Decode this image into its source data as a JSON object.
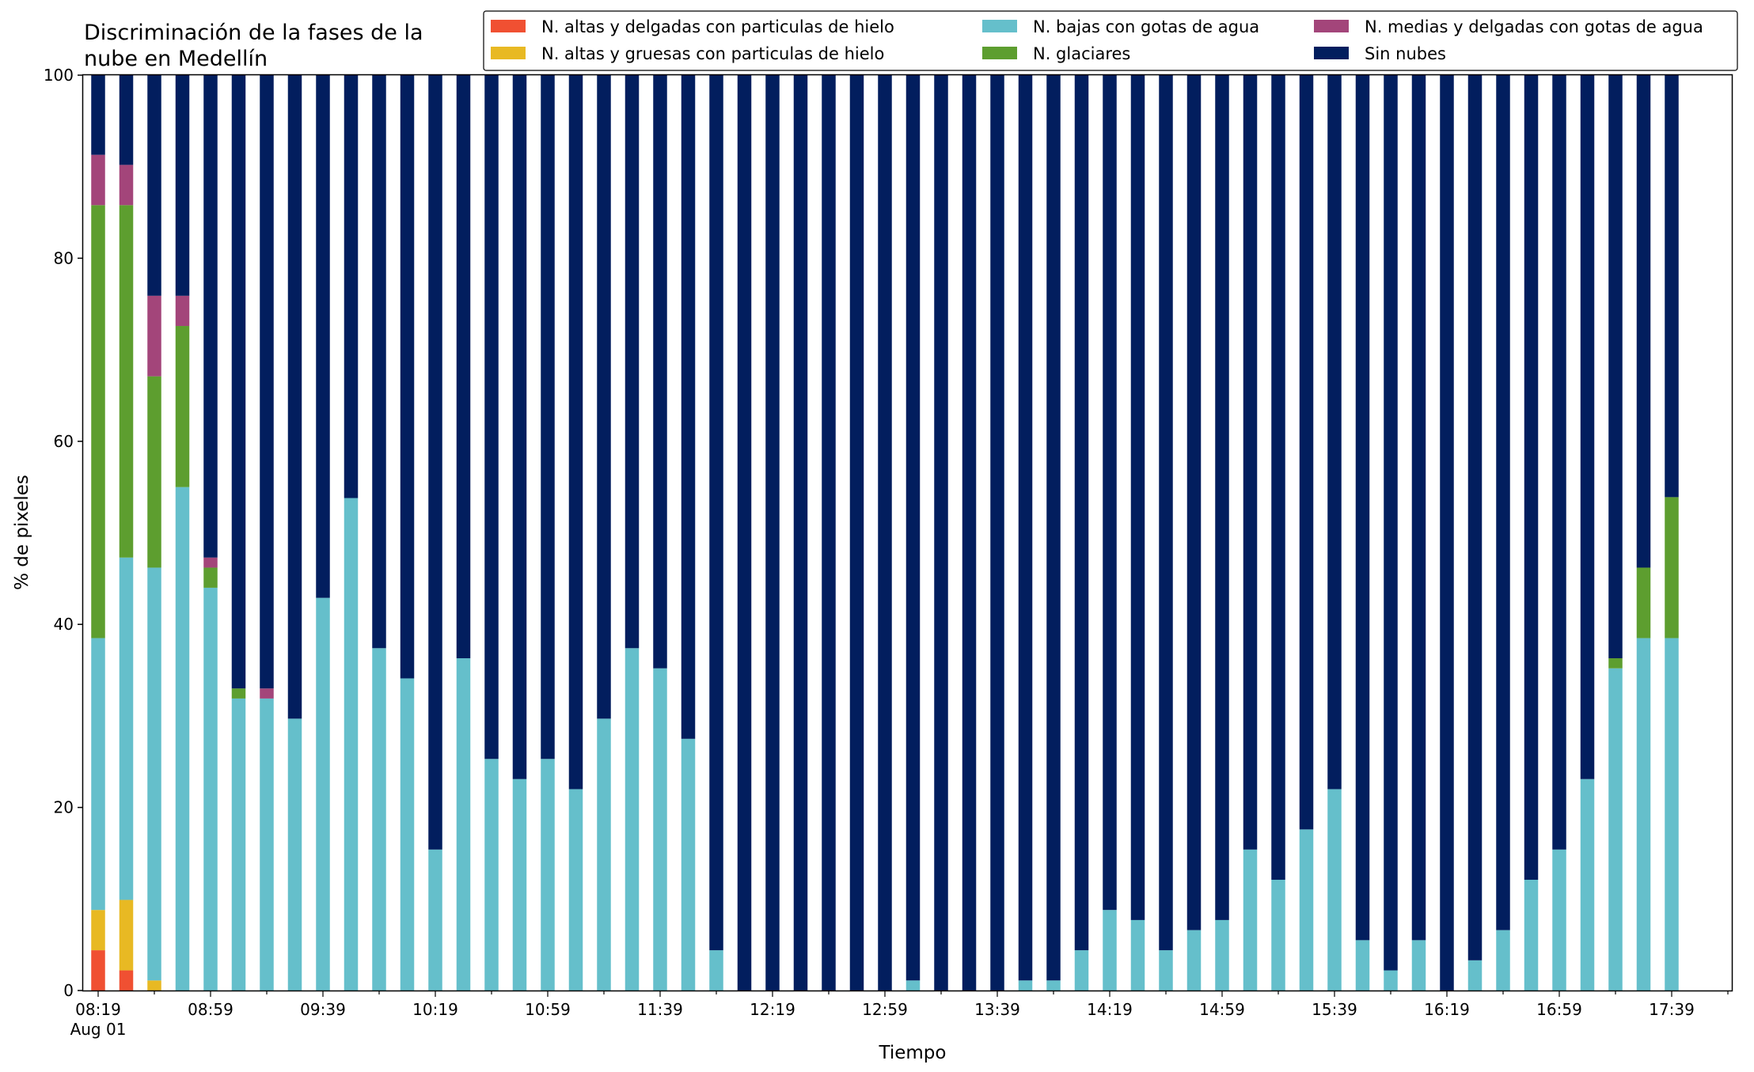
{
  "chart_data": {
    "type": "bar",
    "stacked": true,
    "title": "Discriminación de la fases de la\nnube en Medellín",
    "xlabel": "Tiempo",
    "ylabel": "% de pixeles",
    "ylim": [
      0,
      100
    ],
    "yticks": [
      0,
      20,
      40,
      60,
      80,
      100
    ],
    "grid": false,
    "legend_position": "top-right",
    "x_start": "08:19",
    "x_step_minutes": 10,
    "x_tick_labels": [
      "08:19",
      "08:59",
      "09:39",
      "10:19",
      "10:59",
      "11:39",
      "12:19",
      "12:59",
      "13:39",
      "14:19",
      "14:59",
      "15:39",
      "16:19",
      "16:59",
      "17:39"
    ],
    "x_date_label": "Aug 01",
    "categories": [
      "08:19",
      "08:29",
      "08:39",
      "08:49",
      "08:59",
      "09:09",
      "09:19",
      "09:29",
      "09:39",
      "09:49",
      "09:59",
      "10:09",
      "10:19",
      "10:29",
      "10:39",
      "10:49",
      "10:59",
      "11:09",
      "11:19",
      "11:29",
      "11:39",
      "11:49",
      "11:59",
      "12:09",
      "12:19",
      "12:29",
      "12:39",
      "12:49",
      "12:59",
      "13:09",
      "13:19",
      "13:29",
      "13:39",
      "13:49",
      "13:59",
      "14:09",
      "14:19",
      "14:29",
      "14:39",
      "14:49",
      "14:59",
      "15:09",
      "15:19",
      "15:29",
      "15:39",
      "15:49",
      "15:59",
      "16:09",
      "16:19",
      "16:29",
      "16:39",
      "16:49",
      "16:59",
      "17:09",
      "17:19",
      "17:29",
      "17:39",
      "17:49"
    ],
    "series": [
      {
        "name": "N. altas y delgadas con particulas de hielo",
        "color": "#f05032",
        "values": [
          4.4,
          2.2,
          0,
          0,
          0,
          0,
          0,
          0,
          0,
          0,
          0,
          0,
          0,
          0,
          0,
          0,
          0,
          0,
          0,
          0,
          0,
          0,
          0,
          0,
          0,
          0,
          0,
          0,
          0,
          0,
          0,
          0,
          0,
          0,
          0,
          0,
          0,
          0,
          0,
          0,
          0,
          0,
          0,
          0,
          0,
          0,
          0,
          0,
          0,
          0,
          0,
          0,
          0,
          0,
          0,
          0,
          0,
          0
        ]
      },
      {
        "name": "N. altas y gruesas con particulas de hielo",
        "color": "#e8b923",
        "values": [
          4.4,
          7.7,
          1.1,
          0,
          0,
          0,
          0,
          0,
          0,
          0,
          0,
          0,
          0,
          0,
          0,
          0,
          0,
          0,
          0,
          0,
          0,
          0,
          0,
          0,
          0,
          0,
          0,
          0,
          0,
          0,
          0,
          0,
          0,
          0,
          0,
          0,
          0,
          0,
          0,
          0,
          0,
          0,
          0,
          0,
          0,
          0,
          0,
          0,
          0,
          0,
          0,
          0,
          0,
          0,
          0,
          0,
          0,
          0
        ]
      },
      {
        "name": "N. bajas con gotas de agua",
        "color": "#65bfcb",
        "values": [
          29.7,
          37.4,
          45.1,
          55,
          44,
          31.9,
          31.9,
          29.7,
          42.9,
          53.8,
          37.4,
          34.1,
          15.4,
          36.3,
          25.3,
          23.1,
          25.3,
          22,
          29.7,
          37.4,
          35.2,
          27.5,
          4.4,
          0,
          0,
          0,
          0,
          0,
          0,
          1.1,
          0,
          0,
          0,
          1.1,
          1.1,
          4.4,
          8.8,
          7.7,
          4.4,
          6.6,
          7.7,
          15.4,
          12.1,
          17.6,
          22,
          5.5,
          2.2,
          5.5,
          0,
          3.3,
          6.6,
          12.1,
          15.4,
          23.1,
          35.2,
          38.5,
          38.5,
          0
        ]
      },
      {
        "name": "N. glaciares",
        "color": "#5d9e2f",
        "values": [
          47.3,
          38.5,
          20.9,
          17.6,
          2.2,
          1.1,
          0,
          0,
          0,
          0,
          0,
          0,
          0,
          0,
          0,
          0,
          0,
          0,
          0,
          0,
          0,
          0,
          0,
          0,
          0,
          0,
          0,
          0,
          0,
          0,
          0,
          0,
          0,
          0,
          0,
          0,
          0,
          0,
          0,
          0,
          0,
          0,
          0,
          0,
          0,
          0,
          0,
          0,
          0,
          0,
          0,
          0,
          0,
          0,
          1.1,
          7.7,
          15.4,
          0
        ]
      },
      {
        "name": "N. medias y delgadas con gotas de agua",
        "color": "#a3457a",
        "values": [
          5.5,
          4.4,
          8.8,
          3.3,
          1.1,
          0,
          1.1,
          0,
          0,
          0,
          0,
          0,
          0,
          0,
          0,
          0,
          0,
          0,
          0,
          0,
          0,
          0,
          0,
          0,
          0,
          0,
          0,
          0,
          0,
          0,
          0,
          0,
          0,
          0,
          0,
          0,
          0,
          0,
          0,
          0,
          0,
          0,
          0,
          0,
          0,
          0,
          0,
          0,
          0,
          0,
          0,
          0,
          0,
          0,
          0,
          0,
          0,
          0
        ]
      },
      {
        "name": "Sin nubes",
        "color": "#021e5e",
        "values": [
          8.7,
          9.8,
          24.1,
          24.1,
          52.7,
          67,
          67,
          70.3,
          57.1,
          46.2,
          62.6,
          65.9,
          84.6,
          63.7,
          74.7,
          76.9,
          74.7,
          78,
          70.3,
          62.6,
          64.8,
          72.5,
          95.6,
          100,
          100,
          100,
          100,
          100,
          100,
          98.9,
          100,
          100,
          100,
          98.9,
          98.9,
          95.6,
          91.2,
          92.3,
          95.6,
          93.4,
          92.3,
          84.6,
          87.9,
          82.4,
          78,
          94.5,
          97.8,
          94.5,
          100,
          96.7,
          93.4,
          87.9,
          84.6,
          76.9,
          63.7,
          53.8,
          46.1,
          0
        ]
      }
    ]
  }
}
